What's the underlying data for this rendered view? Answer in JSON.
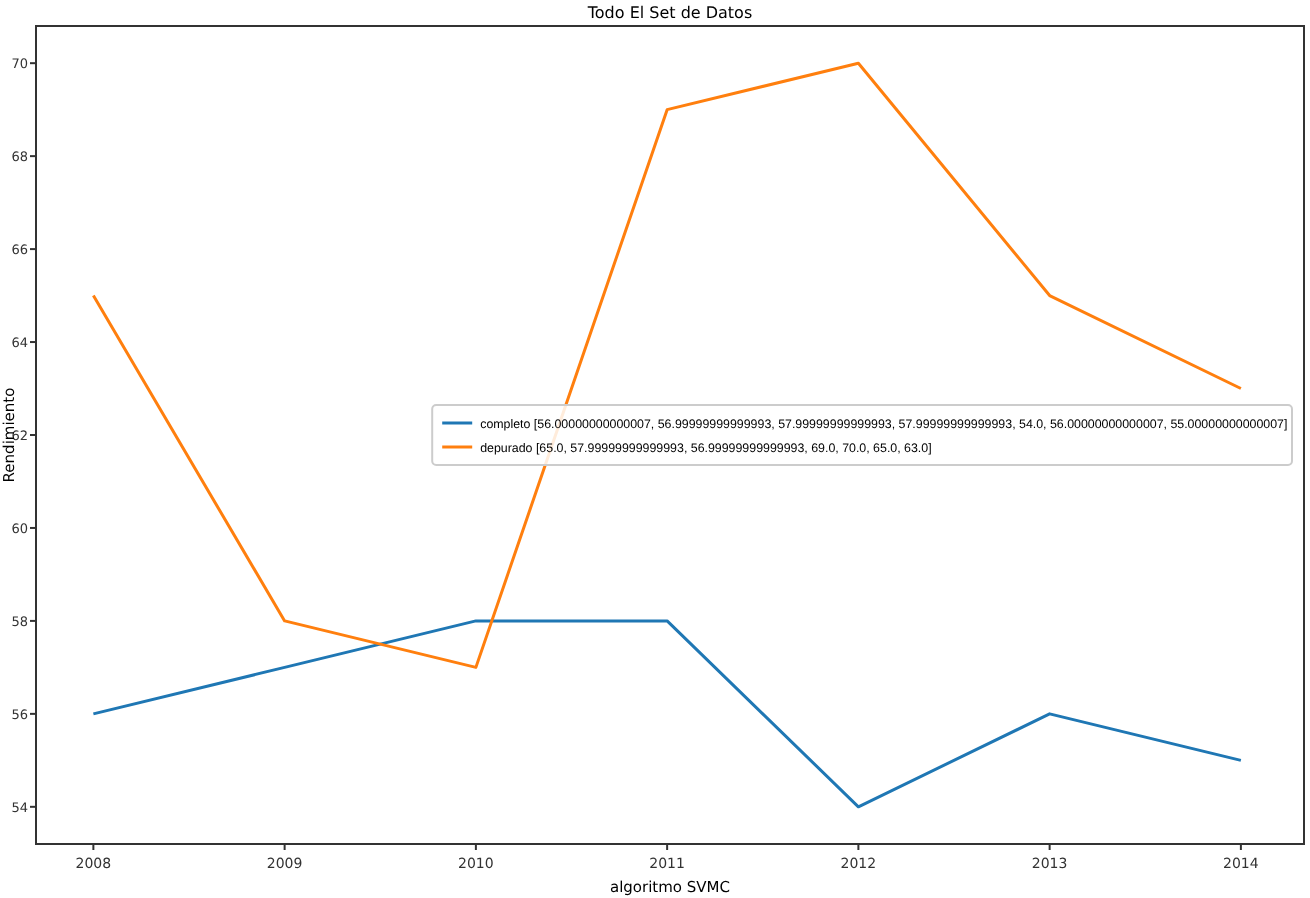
{
  "chart_data": {
    "type": "line",
    "title": "Todo El Set de Datos",
    "xlabel": "algoritmo SVMC",
    "ylabel": "Rendimiento",
    "x": [
      2008,
      2009,
      2010,
      2011,
      2012,
      2013,
      2014
    ],
    "series": [
      {
        "name": "completo [56.00000000000007, 56.99999999999993, 57.99999999999993, 57.99999999999993, 54.0, 56.00000000000007, 55.00000000000007]",
        "color": "#1f77b4",
        "values": [
          56,
          57,
          58,
          58,
          54,
          56,
          55
        ]
      },
      {
        "name": "depurado [65.0, 57.99999999999993, 56.99999999999993, 69.0, 70.0, 65.0, 63.0]",
        "color": "#ff7f0e",
        "values": [
          65,
          58,
          57,
          69,
          70,
          65,
          63
        ]
      }
    ],
    "xlim": [
      2007.7,
      2014.33
    ],
    "ylim": [
      53.2,
      70.8
    ],
    "xticks": [
      2008,
      2009,
      2010,
      2011,
      2012,
      2013,
      2014
    ],
    "yticks": [
      54,
      56,
      58,
      60,
      62,
      64,
      66,
      68,
      70
    ],
    "legend": "right",
    "grid": false
  }
}
